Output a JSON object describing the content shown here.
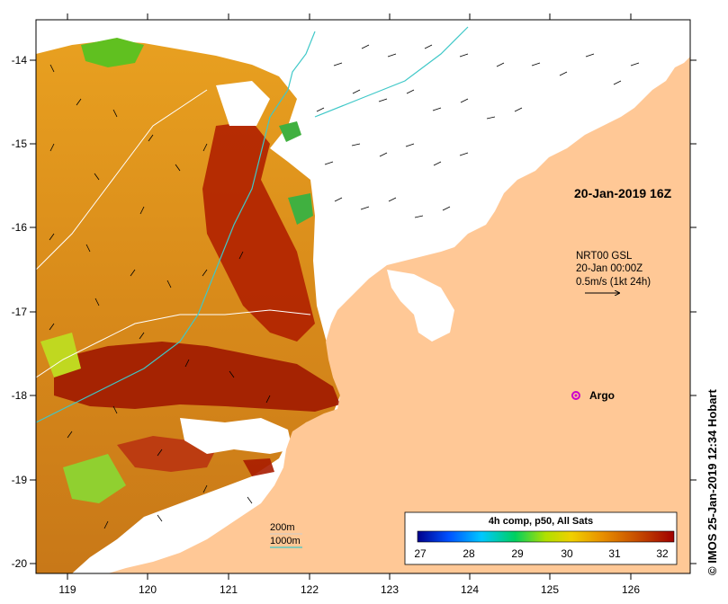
{
  "map": {
    "title": "20-Jan-2019 16Z",
    "credit": "©  IMOS 25-Jan-2019 12:34 Hobart",
    "lat_labels": [
      "-14",
      "-15",
      "-16",
      "-17",
      "-18",
      "-19",
      "-20"
    ],
    "lon_labels": [
      "119",
      "120",
      "121",
      "122",
      "123",
      "124",
      "125",
      "126"
    ],
    "lat_range": [
      -20.1,
      -13.5
    ],
    "lon_range": [
      118.7,
      126.7
    ]
  },
  "current_info": {
    "line1": "NRT00 GSL",
    "line2": "20-Jan 00:00Z",
    "line3": "0.5m/s (1kt 24h)"
  },
  "argo": {
    "label": "Argo",
    "lon": 125.25,
    "lat": -18.0,
    "color": "#cc00cc"
  },
  "isobaths": {
    "label1": "200m",
    "label2": "1000m",
    "color2": "#3fc8c8"
  },
  "colorbar": {
    "title": "4h comp, p50, All Sats",
    "ticks": [
      "27",
      "28",
      "29",
      "30",
      "31",
      "32"
    ],
    "range": [
      27,
      32.5
    ],
    "colors": [
      "#00008b",
      "#0050ff",
      "#00c8ff",
      "#00d060",
      "#b0e000",
      "#f0d000",
      "#e89000",
      "#c85000",
      "#a00000"
    ]
  },
  "colors": {
    "land": "#ffc896",
    "sst_warm": "#d88a1a",
    "sst_hot": "#b02000"
  }
}
